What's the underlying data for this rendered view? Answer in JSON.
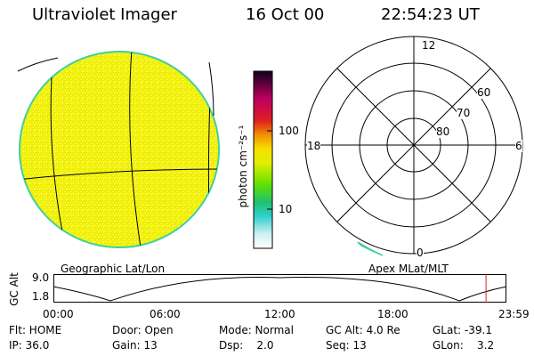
{
  "header": {
    "instrument": "Ultraviolet Imager",
    "date": "16 Oct 00",
    "time": "22:54:23 UT"
  },
  "colorbar": {
    "unit_label": "photon cm⁻²s⁻¹",
    "tick_100": "100",
    "tick_10": "10"
  },
  "left_panel": {
    "label": "Geographic Lat/Lon"
  },
  "right_panel": {
    "label": "Apex MLat/MLT",
    "mlt_12": "12",
    "mlt_18": "18",
    "mlt_6": "6",
    "mlt_0": "0",
    "lat_60": "60",
    "lat_70": "70",
    "lat_80": "80"
  },
  "altitude_plot": {
    "ylabel": "GC Alt",
    "ytick_top": "9.0",
    "ytick_bottom": "1.8",
    "xticks": [
      "00:00",
      "06:00",
      "12:00",
      "18:00",
      "23:59"
    ],
    "current_time_fraction": 0.955
  },
  "status": {
    "flt": "Flt: HOME",
    "ip": "IP: 36.0",
    "door": "Door: Open",
    "gain": "Gain: 13",
    "mode": "Mode: Normal",
    "dsp": "Dsp:    2.0",
    "gcalt": "GC Alt: 4.0 Re",
    "seq": "Seq: 13",
    "glat": "GLat: -39.1",
    "glon": "GLon:    3.2"
  },
  "colors": {
    "disk_yellow": "#f0f000",
    "disk_edge": "#40d0a0",
    "altitude_marker": "#e02020"
  }
}
